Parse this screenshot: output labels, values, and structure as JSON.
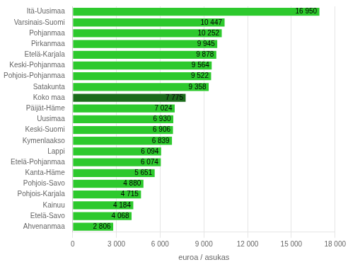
{
  "chart_data": {
    "type": "bar",
    "orientation": "horizontal",
    "categories": [
      "Ahvenanmaa",
      "Etelä-Savo",
      "Kainuu",
      "Pohjois-Karjala",
      "Pohjois-Savo",
      "Kanta-Häme",
      "Etelä-Pohjanmaa",
      "Lappi",
      "Kymenlaakso",
      "Keski-Suomi",
      "Uusimaa",
      "Päijät-Häme",
      "Koko maa",
      "Satakunta",
      "Pohjois-Pohjanmaa",
      "Keski-Pohjanmaa",
      "Etelä-Karjala",
      "Pirkanmaa",
      "Pohjanmaa",
      "Varsinais-Suomi",
      "Itä-Uusimaa"
    ],
    "values": [
      2806,
      4068,
      4184,
      4715,
      4880,
      5651,
      6074,
      6094,
      6839,
      6906,
      6930,
      7024,
      7775,
      9358,
      9522,
      9564,
      9878,
      9945,
      10252,
      10447,
      16950
    ],
    "value_labels": [
      "2 806",
      "4 068",
      "4 184",
      "4 715",
      "4 880",
      "5 651",
      "6 074",
      "6 094",
      "6 839",
      "6 906",
      "6 930",
      "7 024",
      "7 775",
      "9 358",
      "9 522",
      "9 564",
      "9 878",
      "9 945",
      "10 252",
      "10 447",
      "16 950"
    ],
    "data_labels": true,
    "colors": [
      "#2dc92d",
      "#2dc92d",
      "#2dc92d",
      "#2dc92d",
      "#2dc92d",
      "#2dc92d",
      "#2dc92d",
      "#2dc92d",
      "#2dc92d",
      "#2dc92d",
      "#2dc92d",
      "#2dc92d",
      "#1a6b1a",
      "#2dc92d",
      "#2dc92d",
      "#2dc92d",
      "#2dc92d",
      "#2dc92d",
      "#2dc92d",
      "#2dc92d",
      "#2dc92d"
    ],
    "xlabel": "euroa / asukas",
    "xlim": [
      0,
      18000
    ],
    "xticks": [
      0,
      {
        "value": 3000,
        "label": "3 000"
      },
      {
        "value": 6000,
        "label": "6 000"
      },
      {
        "value": 9000,
        "label": "9 000"
      },
      {
        "value": 12000,
        "label": "12 000"
      },
      {
        "value": 15000,
        "label": "15 000"
      },
      {
        "value": 18000,
        "label": "18 000"
      }
    ],
    "grid": true
  }
}
